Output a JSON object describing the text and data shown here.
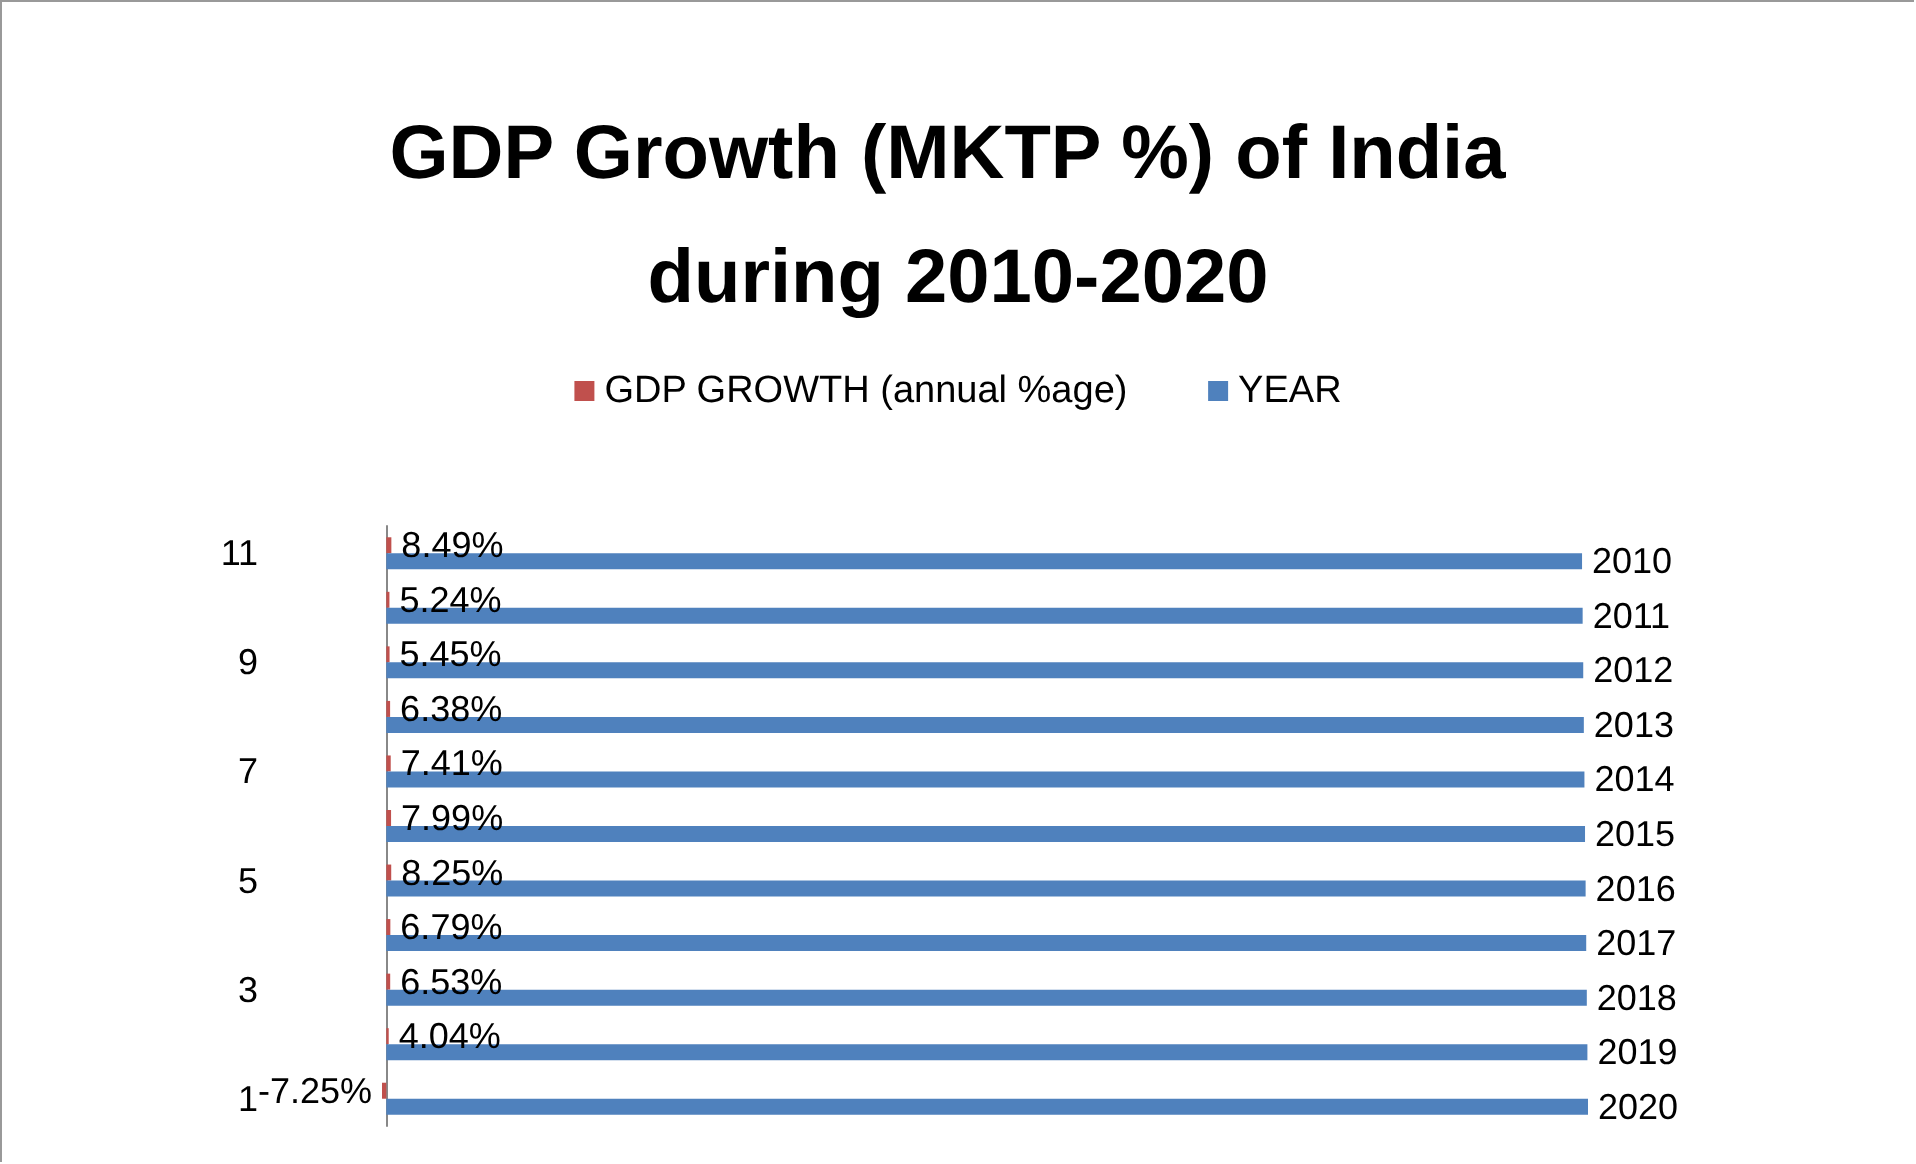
{
  "chart_data": {
    "type": "bar",
    "orientation": "horizontal",
    "title": "GDP Growth (MKTP %) of India during 2010-2020",
    "categories": [
      "11",
      null,
      "9",
      null,
      "7",
      null,
      "5",
      null,
      "3",
      null,
      "1"
    ],
    "series": [
      {
        "name": "GDP GROWTH (annual %age)",
        "color": "#c0504d",
        "values": [
          8.49,
          5.24,
          5.45,
          6.38,
          7.41,
          7.99,
          8.25,
          6.79,
          6.53,
          4.04,
          -7.25
        ],
        "value_labels": [
          "8.49%",
          "5.24%",
          "5.45%",
          "6.38%",
          "7.41%",
          "7.99%",
          "8.25%",
          "6.79%",
          "6.53%",
          "4.04%",
          "-7.25%"
        ]
      },
      {
        "name": "YEAR",
        "color": "#4f81bd",
        "values": [
          2010,
          2011,
          2012,
          2013,
          2014,
          2015,
          2016,
          2017,
          2018,
          2019,
          2020
        ]
      }
    ],
    "data_labels": true,
    "legend": "top",
    "tick_labels": "y"
  }
}
